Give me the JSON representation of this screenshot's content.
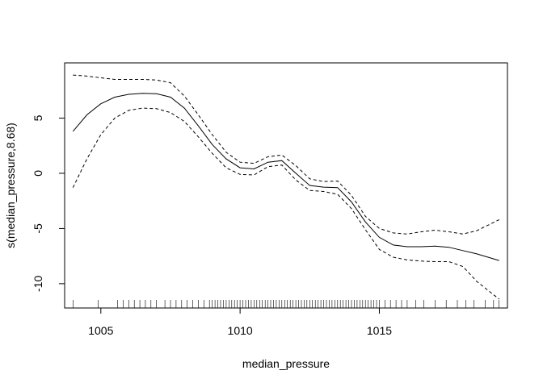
{
  "chart_data": {
    "type": "line",
    "title": "",
    "xlabel": "median_pressure",
    "ylabel": "s(median_pressure,8.68)",
    "xlim": [
      1003.7,
      1019.6
    ],
    "ylim": [
      -12.2,
      10.0
    ],
    "x_ticks": [
      1005,
      1010,
      1015
    ],
    "x_tick_labels": [
      "1005",
      "1010",
      "1015"
    ],
    "y_ticks": [
      -10,
      -5,
      0,
      5
    ],
    "y_tick_labels": [
      "-10",
      "-5",
      "0",
      "5"
    ],
    "grid": false,
    "legend": "none",
    "series": [
      {
        "style": "solid",
        "x": [
          1004.0,
          1004.5,
          1005.0,
          1005.5,
          1006.0,
          1006.5,
          1007.0,
          1007.5,
          1008.0,
          1008.5,
          1009.0,
          1009.5,
          1010.0,
          1010.5,
          1011.0,
          1011.5,
          1012.0,
          1012.5,
          1013.0,
          1013.5,
          1014.0,
          1014.5,
          1015.0,
          1015.5,
          1016.0,
          1016.5,
          1017.0,
          1017.5,
          1018.0,
          1018.5,
          1019.3
        ],
        "values": [
          3.8,
          5.3,
          6.3,
          6.9,
          7.15,
          7.25,
          7.2,
          6.9,
          5.9,
          4.3,
          2.6,
          1.3,
          0.5,
          0.4,
          1.0,
          1.15,
          0.0,
          -1.1,
          -1.25,
          -1.3,
          -2.6,
          -4.4,
          -5.8,
          -6.5,
          -6.65,
          -6.65,
          -6.6,
          -6.7,
          -7.0,
          -7.3,
          -7.9
        ]
      },
      {
        "style": "dashed",
        "x": [
          1004.0,
          1004.5,
          1005.0,
          1005.5,
          1006.0,
          1006.5,
          1007.0,
          1007.5,
          1008.0,
          1008.5,
          1009.0,
          1009.5,
          1010.0,
          1010.5,
          1011.0,
          1011.5,
          1012.0,
          1012.5,
          1013.0,
          1013.5,
          1014.0,
          1014.5,
          1015.0,
          1015.5,
          1016.0,
          1016.5,
          1017.0,
          1017.5,
          1018.0,
          1018.5,
          1019.3
        ],
        "values": [
          8.9,
          8.8,
          8.65,
          8.5,
          8.5,
          8.5,
          8.45,
          8.2,
          7.0,
          5.3,
          3.5,
          1.9,
          1.0,
          0.9,
          1.5,
          1.65,
          0.7,
          -0.5,
          -0.75,
          -0.7,
          -2.0,
          -3.9,
          -5.0,
          -5.4,
          -5.5,
          -5.3,
          -5.15,
          -5.3,
          -5.5,
          -5.2,
          -4.2
        ]
      },
      {
        "style": "dashed",
        "x": [
          1004.0,
          1004.5,
          1005.0,
          1005.5,
          1006.0,
          1006.5,
          1007.0,
          1007.5,
          1008.0,
          1008.5,
          1009.0,
          1009.5,
          1010.0,
          1010.5,
          1011.0,
          1011.5,
          1012.0,
          1012.5,
          1013.0,
          1013.5,
          1014.0,
          1014.5,
          1015.0,
          1015.5,
          1016.0,
          1016.5,
          1017.0,
          1017.5,
          1018.0,
          1018.5,
          1019.3
        ],
        "values": [
          -1.3,
          1.3,
          3.5,
          5.0,
          5.7,
          5.9,
          5.85,
          5.5,
          4.7,
          3.3,
          1.8,
          0.5,
          -0.1,
          -0.15,
          0.6,
          0.75,
          -0.6,
          -1.55,
          -1.65,
          -1.9,
          -3.2,
          -5.1,
          -6.9,
          -7.6,
          -7.85,
          -7.95,
          -8.0,
          -8.0,
          -8.45,
          -9.8,
          -11.4
        ]
      }
    ],
    "rug": [
      1004.0,
      1004.9,
      1005.6,
      1005.8,
      1006.0,
      1006.2,
      1006.4,
      1006.6,
      1006.8,
      1007.0,
      1007.3,
      1007.5,
      1007.7,
      1007.9,
      1008.1,
      1008.3,
      1008.5,
      1008.7,
      1008.9,
      1009.0,
      1009.1,
      1009.2,
      1009.3,
      1009.4,
      1009.5,
      1009.6,
      1009.7,
      1009.8,
      1009.9,
      1010.0,
      1010.1,
      1010.2,
      1010.3,
      1010.4,
      1010.5,
      1010.6,
      1010.7,
      1010.8,
      1010.9,
      1011.0,
      1011.1,
      1011.2,
      1011.3,
      1011.4,
      1011.5,
      1011.6,
      1011.7,
      1011.8,
      1011.9,
      1012.0,
      1012.1,
      1012.2,
      1012.3,
      1012.4,
      1012.5,
      1012.6,
      1012.7,
      1012.8,
      1012.9,
      1013.0,
      1013.1,
      1013.2,
      1013.3,
      1013.4,
      1013.5,
      1013.6,
      1013.7,
      1013.8,
      1013.9,
      1014.0,
      1014.1,
      1014.2,
      1014.3,
      1014.4,
      1014.5,
      1014.6,
      1014.7,
      1014.8,
      1014.9,
      1015.0,
      1015.2,
      1015.4,
      1015.6,
      1015.8,
      1016.0,
      1016.3,
      1016.6,
      1017.0,
      1017.4,
      1017.8,
      1018.1,
      1018.4,
      1018.8,
      1019.1,
      1019.3
    ]
  }
}
